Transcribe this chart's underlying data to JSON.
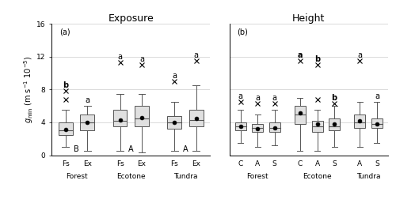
{
  "title_a": "Exposure",
  "title_b": "Height",
  "panel_a_label": "(a)",
  "panel_b_label": "(b)",
  "ylabel": "$g_{\\mathrm{min}}$ (m s$^{-1}$ 10$^{-5}$)",
  "ylim": [
    0,
    16
  ],
  "yticks": [
    0,
    4,
    8,
    12,
    16
  ],
  "panel_a": {
    "positions": [
      1,
      2,
      3.5,
      4.5,
      6,
      7
    ],
    "xtick_labels_minor": [
      "Fs",
      "Ex",
      "Fs",
      "Ex",
      "Fs",
      "Ex"
    ],
    "group_centers": [
      1.5,
      4.0,
      6.5
    ],
    "xtick_labels_major": [
      "Forest",
      "Ecotone",
      "Tundra"
    ],
    "boxes": [
      {
        "whislo": 1.0,
        "q1": 2.5,
        "med": 3.0,
        "q3": 4.0,
        "whishi": 5.5,
        "mean": 3.1,
        "outliers": [
          7.8,
          6.8
        ]
      },
      {
        "whislo": 0.5,
        "q1": 3.0,
        "med": 4.0,
        "q3": 5.0,
        "whishi": 6.0,
        "mean": 4.0,
        "outliers": []
      },
      {
        "whislo": 0.5,
        "q1": 3.5,
        "med": 4.2,
        "q3": 5.5,
        "whishi": 7.5,
        "mean": 4.3,
        "outliers": [
          11.3
        ]
      },
      {
        "whislo": 0.3,
        "q1": 3.5,
        "med": 4.5,
        "q3": 6.0,
        "whishi": 7.5,
        "mean": 4.6,
        "outliers": [
          11.0
        ]
      },
      {
        "whislo": 0.5,
        "q1": 3.2,
        "med": 4.0,
        "q3": 4.8,
        "whishi": 6.5,
        "mean": 4.0,
        "outliers": [
          9.0
        ]
      },
      {
        "whislo": 0.5,
        "q1": 3.5,
        "med": 4.3,
        "q3": 5.5,
        "whishi": 8.5,
        "mean": 4.5,
        "outliers": [
          11.5
        ]
      }
    ],
    "stat_labels_top": [
      "b",
      "a",
      "a",
      "a",
      "a",
      "a"
    ],
    "stat_labels_top_bold": [
      true,
      false,
      false,
      false,
      false,
      false
    ],
    "stat_labels_bottom": [
      "B",
      "",
      "A",
      "",
      "A",
      ""
    ],
    "stat_bottom_positions": [
      1.5,
      0,
      4.0,
      0,
      6.5,
      0
    ]
  },
  "panel_b": {
    "positions": [
      1,
      2,
      3,
      4.5,
      5.5,
      6.5,
      8,
      9
    ],
    "xtick_labels_minor": [
      "C",
      "A",
      "S",
      "C",
      "A",
      "S",
      "A",
      "S"
    ],
    "group_centers": [
      2.0,
      5.5,
      8.5
    ],
    "xtick_labels_major": [
      "Forest",
      "Ecotone",
      "Tundra"
    ],
    "boxes": [
      {
        "whislo": 1.5,
        "q1": 3.0,
        "med": 3.5,
        "q3": 4.0,
        "whishi": 5.5,
        "mean": 3.5,
        "outliers": [
          6.5
        ]
      },
      {
        "whislo": 1.0,
        "q1": 2.8,
        "med": 3.3,
        "q3": 3.8,
        "whishi": 5.0,
        "mean": 3.2,
        "outliers": [
          6.3
        ]
      },
      {
        "whislo": 1.2,
        "q1": 2.8,
        "med": 3.3,
        "q3": 4.0,
        "whishi": 5.5,
        "mean": 3.3,
        "outliers": [
          6.3
        ]
      },
      {
        "whislo": 0.5,
        "q1": 3.8,
        "med": 5.0,
        "q3": 6.0,
        "whishi": 7.0,
        "mean": 5.2,
        "outliers": [
          11.5
        ]
      },
      {
        "whislo": 0.5,
        "q1": 2.8,
        "med": 3.5,
        "q3": 4.2,
        "whishi": 5.5,
        "mean": 3.8,
        "outliers": [
          11.0,
          6.8
        ]
      },
      {
        "whislo": 1.0,
        "q1": 3.0,
        "med": 3.5,
        "q3": 4.5,
        "whishi": 6.0,
        "mean": 3.8,
        "outliers": [
          6.3
        ]
      },
      {
        "whislo": 1.0,
        "q1": 3.3,
        "med": 4.0,
        "q3": 5.0,
        "whishi": 6.5,
        "mean": 4.2,
        "outliers": [
          11.5
        ]
      },
      {
        "whislo": 1.5,
        "q1": 3.3,
        "med": 3.8,
        "q3": 4.5,
        "whishi": 6.5,
        "mean": 3.8,
        "outliers": []
      }
    ],
    "stat_labels_top": [
      "a",
      "a",
      "a",
      "a",
      "b",
      "b",
      "a",
      "a"
    ],
    "stat_labels_top_bold": [
      false,
      false,
      false,
      true,
      true,
      true,
      false,
      false
    ]
  },
  "box_color": "#e0e0e0",
  "box_edgecolor": "#555555",
  "median_color": "#555555",
  "whisker_color": "#555555",
  "mean_color": "black",
  "mean_size": 3.5,
  "outlier_size": 4,
  "grid_color": "#cccccc",
  "background_color": "white",
  "box_width": 0.65,
  "fontsize_tick": 6.5,
  "fontsize_label": 7,
  "fontsize_title": 9,
  "fontsize_stat": 7
}
